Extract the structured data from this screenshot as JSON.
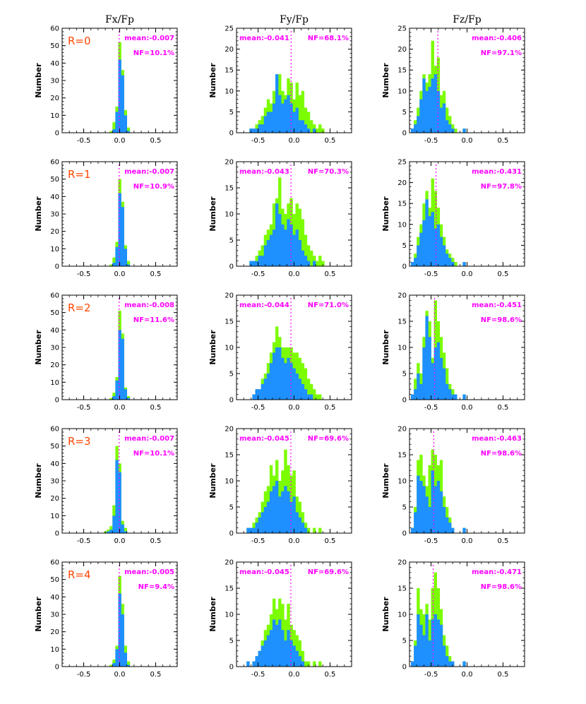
{
  "figure": {
    "column_titles": [
      "Fx/Fp",
      "Fy/Fp",
      "Fz/Fp"
    ],
    "ylabel": "Number",
    "colors": {
      "all": "#7cfc00",
      "subset": "#1e90ff",
      "mean_line": "#ff00ff",
      "annotation": "#ff00ff",
      "row_label": "#ff4500",
      "axis": "#000000"
    }
  },
  "chart_data": [
    {
      "type": "bar",
      "row": 0,
      "col": 0,
      "title": "Fx/Fp",
      "row_label": "R=0",
      "xlim": [
        -0.8,
        0.8
      ],
      "ylim": [
        0,
        60
      ],
      "xticks": [
        -0.5,
        0.0,
        0.5
      ],
      "xtick_labels": [
        "-0.5",
        "0.0",
        "0.5"
      ],
      "yticks": [
        0,
        10,
        20,
        30,
        40,
        50,
        60
      ],
      "bin_width": 0.04,
      "bin_start": -0.14,
      "series": [
        {
          "name": "all",
          "values": [
            1,
            6,
            15,
            52,
            36,
            13,
            3
          ]
        },
        {
          "name": "subset",
          "values": [
            0,
            2,
            12,
            42,
            33,
            10,
            1
          ]
        }
      ],
      "mean_x": -0.007,
      "mean_label": "mean:-0.007",
      "nf_label": "NF=10.1%",
      "annotation_side": "right"
    },
    {
      "type": "bar",
      "row": 0,
      "col": 1,
      "title": "Fy/Fp",
      "xlim": [
        -0.8,
        0.8
      ],
      "ylim": [
        0,
        25
      ],
      "xticks": [
        -0.5,
        0.0,
        0.5
      ],
      "xtick_labels": [
        "-0.5",
        "0.0",
        "0.5"
      ],
      "yticks": [
        0,
        5,
        10,
        15,
        20,
        25
      ],
      "bin_width": 0.04,
      "bin_start": -0.62,
      "series": [
        {
          "name": "all",
          "values": [
            1,
            1,
            2,
            3,
            4,
            6,
            8,
            7,
            10,
            12,
            14,
            10,
            9,
            13,
            12,
            8,
            12,
            9,
            10,
            6,
            5,
            3,
            2,
            1,
            2,
            1
          ]
        },
        {
          "name": "subset",
          "values": [
            1,
            1,
            1,
            2,
            2,
            4,
            5,
            5,
            7,
            14,
            9,
            7,
            8,
            9,
            7,
            5,
            6,
            3,
            3,
            2,
            1,
            0,
            1,
            0,
            0,
            0
          ]
        }
      ],
      "mean_x": -0.041,
      "mean_label": "mean:-0.041",
      "nf_label": "NF=68.1%",
      "annotation_side": "split"
    },
    {
      "type": "bar",
      "row": 0,
      "col": 2,
      "title": "Fz/Fp",
      "xlim": [
        -0.8,
        0.8
      ],
      "ylim": [
        0,
        25
      ],
      "xticks": [
        -0.5,
        0.0,
        0.5
      ],
      "xtick_labels": [
        "-0.5",
        "0.0",
        "0.5"
      ],
      "yticks": [
        0,
        5,
        10,
        15,
        20,
        25
      ],
      "bin_width": 0.04,
      "bin_start": -0.78,
      "series": [
        {
          "name": "all",
          "values": [
            1,
            3,
            6,
            10,
            14,
            12,
            14,
            22,
            16,
            18,
            9,
            10,
            6,
            4,
            2,
            1,
            0,
            0,
            1
          ]
        },
        {
          "name": "subset",
          "values": [
            1,
            2,
            4,
            8,
            13,
            10,
            11,
            13,
            14,
            10,
            6,
            7,
            3,
            2,
            1,
            0,
            0,
            0,
            1
          ]
        }
      ],
      "mean_x": -0.406,
      "mean_label": "mean:-0.406",
      "nf_label": "NF=97.1%",
      "annotation_side": "right"
    },
    {
      "type": "bar",
      "row": 1,
      "col": 0,
      "row_label": "R=1",
      "xlim": [
        -0.8,
        0.8
      ],
      "ylim": [
        0,
        60
      ],
      "xticks": [
        -0.5,
        0.0,
        0.5
      ],
      "xtick_labels": [
        "-0.5",
        "0.0",
        "0.5"
      ],
      "yticks": [
        0,
        10,
        20,
        30,
        40,
        50,
        60
      ],
      "bin_width": 0.04,
      "bin_start": -0.14,
      "series": [
        {
          "name": "all",
          "values": [
            1,
            5,
            14,
            50,
            37,
            12,
            3
          ]
        },
        {
          "name": "subset",
          "values": [
            0,
            2,
            11,
            42,
            34,
            10,
            1
          ]
        }
      ],
      "mean_x": -0.007,
      "mean_label": "mean:-0.007",
      "nf_label": "NF=10.9%",
      "annotation_side": "right"
    },
    {
      "type": "bar",
      "row": 1,
      "col": 1,
      "xlim": [
        -0.8,
        0.8
      ],
      "ylim": [
        0,
        20
      ],
      "xticks": [
        -0.5,
        0.0,
        0.5
      ],
      "xtick_labels": [
        "-0.5",
        "0.0",
        "0.5"
      ],
      "yticks": [
        0,
        5,
        10,
        15,
        20
      ],
      "bin_width": 0.04,
      "bin_start": -0.62,
      "series": [
        {
          "name": "all",
          "values": [
            1,
            1,
            2,
            3,
            4,
            6,
            7,
            8,
            12,
            13,
            17,
            11,
            10,
            12,
            13,
            10,
            12,
            11,
            9,
            6,
            4,
            3,
            2,
            1,
            2,
            1
          ]
        },
        {
          "name": "subset",
          "values": [
            1,
            1,
            1,
            2,
            2,
            4,
            5,
            6,
            7,
            12,
            10,
            8,
            7,
            9,
            8,
            6,
            7,
            5,
            3,
            2,
            1,
            0,
            1,
            0,
            0,
            0
          ]
        }
      ],
      "mean_x": -0.043,
      "mean_label": "mean:-0.043",
      "nf_label": "NF=70.3%",
      "annotation_side": "split"
    },
    {
      "type": "bar",
      "row": 1,
      "col": 2,
      "xlim": [
        -0.8,
        0.8
      ],
      "ylim": [
        0,
        25
      ],
      "xticks": [
        -0.5,
        0.0,
        0.5
      ],
      "xtick_labels": [
        "-0.5",
        "0.0",
        "0.5"
      ],
      "yticks": [
        0,
        5,
        10,
        15,
        20,
        25
      ],
      "bin_width": 0.04,
      "bin_start": -0.78,
      "series": [
        {
          "name": "all",
          "values": [
            1,
            3,
            7,
            10,
            15,
            18,
            14,
            21,
            18,
            14,
            10,
            7,
            4,
            3,
            2,
            1,
            0,
            0,
            1
          ]
        },
        {
          "name": "subset",
          "values": [
            1,
            2,
            5,
            8,
            11,
            16,
            12,
            13,
            9,
            10,
            7,
            5,
            3,
            2,
            1,
            0,
            0,
            0,
            1
          ]
        }
      ],
      "mean_x": -0.431,
      "mean_label": "mean:-0.431",
      "nf_label": "NF=97.8%",
      "annotation_side": "right"
    },
    {
      "type": "bar",
      "row": 2,
      "col": 0,
      "row_label": "R=2",
      "xlim": [
        -0.8,
        0.8
      ],
      "ylim": [
        0,
        60
      ],
      "xticks": [
        -0.5,
        0.0,
        0.5
      ],
      "xtick_labels": [
        "-0.5",
        "0.0",
        "0.5"
      ],
      "yticks": [
        0,
        10,
        20,
        30,
        40,
        50,
        60
      ],
      "bin_width": 0.04,
      "bin_start": -0.14,
      "series": [
        {
          "name": "all",
          "values": [
            1,
            4,
            13,
            51,
            38,
            7,
            2
          ]
        },
        {
          "name": "subset",
          "values": [
            0,
            2,
            11,
            40,
            35,
            6,
            1
          ]
        }
      ],
      "mean_x": -0.008,
      "mean_label": "mean:-0.008",
      "nf_label": "NF=11.6%",
      "annotation_side": "right"
    },
    {
      "type": "bar",
      "row": 2,
      "col": 1,
      "xlim": [
        -0.8,
        0.8
      ],
      "ylim": [
        0,
        20
      ],
      "xticks": [
        -0.5,
        0.0,
        0.5
      ],
      "xtick_labels": [
        "-0.5",
        "0.0",
        "0.5"
      ],
      "yticks": [
        0,
        5,
        10,
        15,
        20
      ],
      "bin_width": 0.04,
      "bin_start": -0.62,
      "series": [
        {
          "name": "all",
          "values": [
            0,
            1,
            2,
            2,
            4,
            5,
            7,
            9,
            11,
            14,
            12,
            10,
            10,
            10,
            10,
            9,
            9,
            8,
            7,
            6,
            4,
            3,
            2,
            1,
            1,
            0
          ]
        },
        {
          "name": "subset",
          "values": [
            0,
            1,
            2,
            2,
            3,
            4,
            5,
            7,
            9,
            10,
            10,
            8,
            7,
            8,
            7,
            6,
            5,
            4,
            3,
            2,
            1,
            1,
            0,
            0,
            0,
            0
          ]
        }
      ],
      "mean_x": -0.044,
      "mean_label": "mean:-0.044",
      "nf_label": "NF=71.0%",
      "annotation_side": "split"
    },
    {
      "type": "bar",
      "row": 2,
      "col": 2,
      "xlim": [
        -0.8,
        0.8
      ],
      "ylim": [
        0,
        20
      ],
      "xticks": [
        -0.5,
        0.0,
        0.5
      ],
      "xtick_labels": [
        "-0.5",
        "0.0",
        "0.5"
      ],
      "yticks": [
        0,
        5,
        10,
        15,
        20
      ],
      "bin_width": 0.04,
      "bin_start": -0.78,
      "series": [
        {
          "name": "all",
          "values": [
            1,
            4,
            7,
            5,
            12,
            17,
            15,
            8,
            19,
            15,
            12,
            9,
            6,
            3,
            2,
            1,
            0,
            0,
            1
          ]
        },
        {
          "name": "subset",
          "values": [
            1,
            2,
            5,
            3,
            10,
            16,
            12,
            7,
            10,
            11,
            8,
            6,
            3,
            2,
            1,
            1,
            0,
            0,
            1
          ]
        }
      ],
      "mean_x": -0.451,
      "mean_label": "mean:-0.451",
      "nf_label": "NF=98.6%",
      "annotation_side": "right"
    },
    {
      "type": "bar",
      "row": 3,
      "col": 0,
      "row_label": "R=3",
      "xlim": [
        -0.8,
        0.8
      ],
      "ylim": [
        0,
        60
      ],
      "xticks": [
        -0.5,
        0.0,
        0.5
      ],
      "xtick_labels": [
        "-0.5",
        "0.0",
        "0.5"
      ],
      "yticks": [
        0,
        10,
        20,
        30,
        40,
        50,
        60
      ],
      "bin_width": 0.04,
      "bin_start": -0.22,
      "series": [
        {
          "name": "all",
          "values": [
            1,
            2,
            4,
            16,
            50,
            40,
            7,
            3
          ]
        },
        {
          "name": "subset",
          "values": [
            0,
            1,
            2,
            10,
            42,
            35,
            5,
            1
          ]
        }
      ],
      "mean_x": -0.007,
      "mean_label": "mean:-0.007",
      "nf_label": "NF=10.1%",
      "annotation_side": "right"
    },
    {
      "type": "bar",
      "row": 3,
      "col": 1,
      "xlim": [
        -0.8,
        0.8
      ],
      "ylim": [
        0,
        20
      ],
      "xticks": [
        -0.5,
        0.0,
        0.5
      ],
      "xtick_labels": [
        "-0.5",
        "0.0",
        "0.5"
      ],
      "yticks": [
        0,
        5,
        10,
        15,
        20
      ],
      "bin_width": 0.04,
      "bin_start": -0.66,
      "series": [
        {
          "name": "all",
          "values": [
            1,
            1,
            2,
            3,
            4,
            6,
            8,
            9,
            13,
            11,
            14,
            10,
            12,
            16,
            13,
            11,
            12,
            7,
            6,
            4,
            2,
            1,
            0,
            1,
            0,
            1
          ]
        },
        {
          "name": "subset",
          "values": [
            1,
            1,
            1,
            2,
            3,
            4,
            5,
            6,
            8,
            9,
            10,
            7,
            8,
            9,
            8,
            6,
            7,
            4,
            3,
            2,
            1,
            0,
            0,
            0,
            0,
            0
          ]
        }
      ],
      "mean_x": -0.045,
      "mean_label": "mean:-0.045",
      "nf_label": "NF=69.6%",
      "annotation_side": "split"
    },
    {
      "type": "bar",
      "row": 3,
      "col": 2,
      "xlim": [
        -0.8,
        0.8
      ],
      "ylim": [
        0,
        20
      ],
      "xticks": [
        -0.5,
        0.0,
        0.5
      ],
      "xtick_labels": [
        "-0.5",
        "0.0",
        "0.5"
      ],
      "yticks": [
        0,
        5,
        10,
        15,
        20
      ],
      "bin_width": 0.04,
      "bin_start": -0.78,
      "series": [
        {
          "name": "all",
          "values": [
            1,
            5,
            14,
            15,
            11,
            9,
            13,
            16,
            15,
            13,
            14,
            7,
            5,
            3,
            1,
            0,
            0,
            0,
            1
          ]
        },
        {
          "name": "subset",
          "values": [
            1,
            4,
            11,
            10,
            9,
            7,
            5,
            12,
            9,
            10,
            8,
            5,
            3,
            2,
            1,
            0,
            0,
            0,
            1
          ]
        }
      ],
      "mean_x": -0.463,
      "mean_label": "mean:-0.463",
      "nf_label": "NF=98.6%",
      "annotation_side": "right"
    },
    {
      "type": "bar",
      "row": 4,
      "col": 0,
      "row_label": "R=4",
      "xlim": [
        -0.8,
        0.8
      ],
      "ylim": [
        0,
        60
      ],
      "xticks": [
        -0.5,
        0.0,
        0.5
      ],
      "xtick_labels": [
        "-0.5",
        "0.0",
        "0.5"
      ],
      "yticks": [
        0,
        10,
        20,
        30,
        40,
        50,
        60
      ],
      "bin_width": 0.04,
      "bin_start": -0.14,
      "series": [
        {
          "name": "all",
          "values": [
            1,
            4,
            12,
            52,
            36,
            12,
            3
          ]
        },
        {
          "name": "subset",
          "values": [
            0,
            2,
            10,
            42,
            30,
            8,
            1
          ]
        }
      ],
      "mean_x": -0.005,
      "mean_label": "mean:-0.005",
      "nf_label": "NF=9.4%",
      "annotation_side": "right"
    },
    {
      "type": "bar",
      "row": 4,
      "col": 1,
      "xlim": [
        -0.8,
        0.8
      ],
      "ylim": [
        0,
        20
      ],
      "xticks": [
        -0.5,
        0.0,
        0.5
      ],
      "xtick_labels": [
        "-0.5",
        "0.0",
        "0.5"
      ],
      "yticks": [
        0,
        5,
        10,
        15,
        20
      ],
      "bin_width": 0.04,
      "bin_start": -0.66,
      "series": [
        {
          "name": "all",
          "values": [
            1,
            0,
            1,
            2,
            3,
            5,
            7,
            8,
            10,
            13,
            11,
            13,
            12,
            9,
            12,
            8,
            7,
            6,
            5,
            3,
            1,
            1,
            0,
            1,
            0,
            1
          ]
        },
        {
          "name": "subset",
          "values": [
            1,
            0,
            1,
            2,
            3,
            4,
            5,
            6,
            7,
            9,
            8,
            9,
            7,
            5,
            7,
            5,
            4,
            3,
            2,
            1,
            0,
            0,
            0,
            0,
            0,
            0
          ]
        }
      ],
      "mean_x": -0.045,
      "mean_label": "mean:-0.045",
      "nf_label": "NF=69.6%",
      "annotation_side": "split"
    },
    {
      "type": "bar",
      "row": 4,
      "col": 2,
      "xlim": [
        -0.8,
        0.8
      ],
      "ylim": [
        0,
        20
      ],
      "xticks": [
        -0.5,
        0.0,
        0.5
      ],
      "xtick_labels": [
        "-0.5",
        "0.0",
        "0.5"
      ],
      "yticks": [
        0,
        5,
        10,
        15,
        20
      ],
      "bin_width": 0.04,
      "bin_start": -0.78,
      "series": [
        {
          "name": "all",
          "values": [
            1,
            5,
            15,
            11,
            10,
            12,
            9,
            15,
            18,
            15,
            11,
            6,
            4,
            2,
            1,
            0,
            0,
            0,
            1
          ]
        },
        {
          "name": "subset",
          "values": [
            1,
            4,
            10,
            8,
            6,
            10,
            5,
            9,
            10,
            9,
            8,
            4,
            2,
            1,
            1,
            0,
            0,
            0,
            1
          ]
        }
      ],
      "mean_x": -0.471,
      "mean_label": "mean:-0.471",
      "nf_label": "NF=98.6%",
      "annotation_side": "right"
    }
  ]
}
